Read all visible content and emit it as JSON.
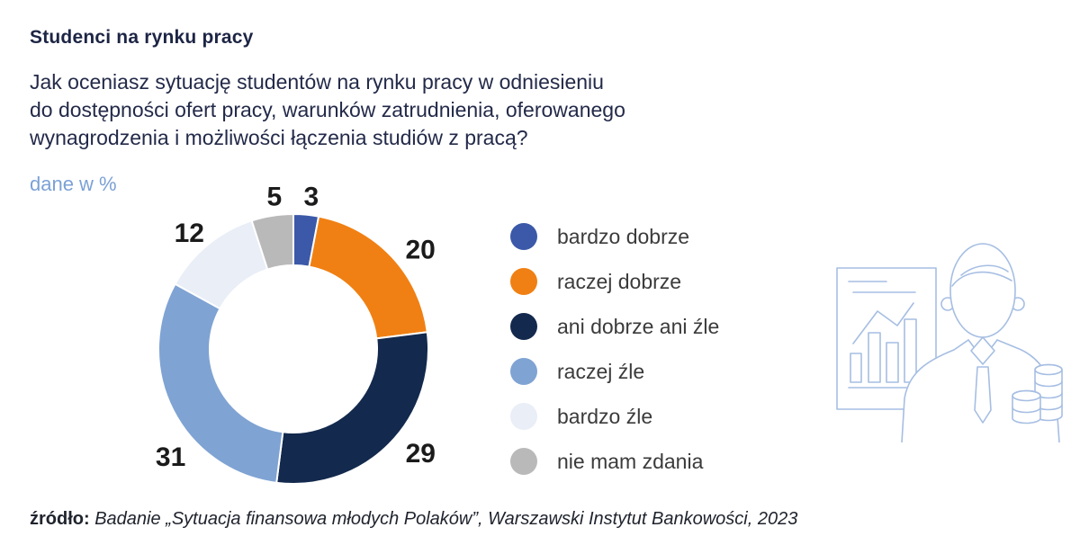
{
  "header": {
    "title": "Studenci na rynku pracy",
    "question_lines": [
      "Jak oceniasz sytuację studentów na rynku pracy w odniesieniu",
      "do dostępności ofert pracy, warunków zatrudnienia, oferowanego",
      "wynagrodzenia i możliwości łączenia studiów z pracą?"
    ]
  },
  "units_label": "dane w %",
  "chart_data": {
    "type": "pie",
    "subtype": "donut",
    "title": "Studenci na rynku pracy",
    "unit": "%",
    "categories": [
      "bardzo dobrze",
      "raczej dobrze",
      "ani dobrze ani źle",
      "raczej źle",
      "bardzo źle",
      "nie mam zdania"
    ],
    "values": [
      3,
      20,
      29,
      31,
      12,
      5
    ],
    "colors": [
      "#3b59a8",
      "#f08013",
      "#13294d",
      "#7fa3d3",
      "#e9eef7",
      "#b9b9ba"
    ],
    "start_angle_deg": 0,
    "direction": "clockwise",
    "donut_hole_ratio": 0.62,
    "slice_gap_color": "#ffffff",
    "data_labels": "outside",
    "legend_position": "right"
  },
  "source": {
    "label": "źródło:",
    "text": "Badanie „Sytuacja finansowa młodych Polaków”, Warszawski Instytut Bankowości, 2023"
  },
  "illustration": {
    "name": "businessman-with-report-and-coins",
    "stroke_color": "#a6bee3"
  }
}
